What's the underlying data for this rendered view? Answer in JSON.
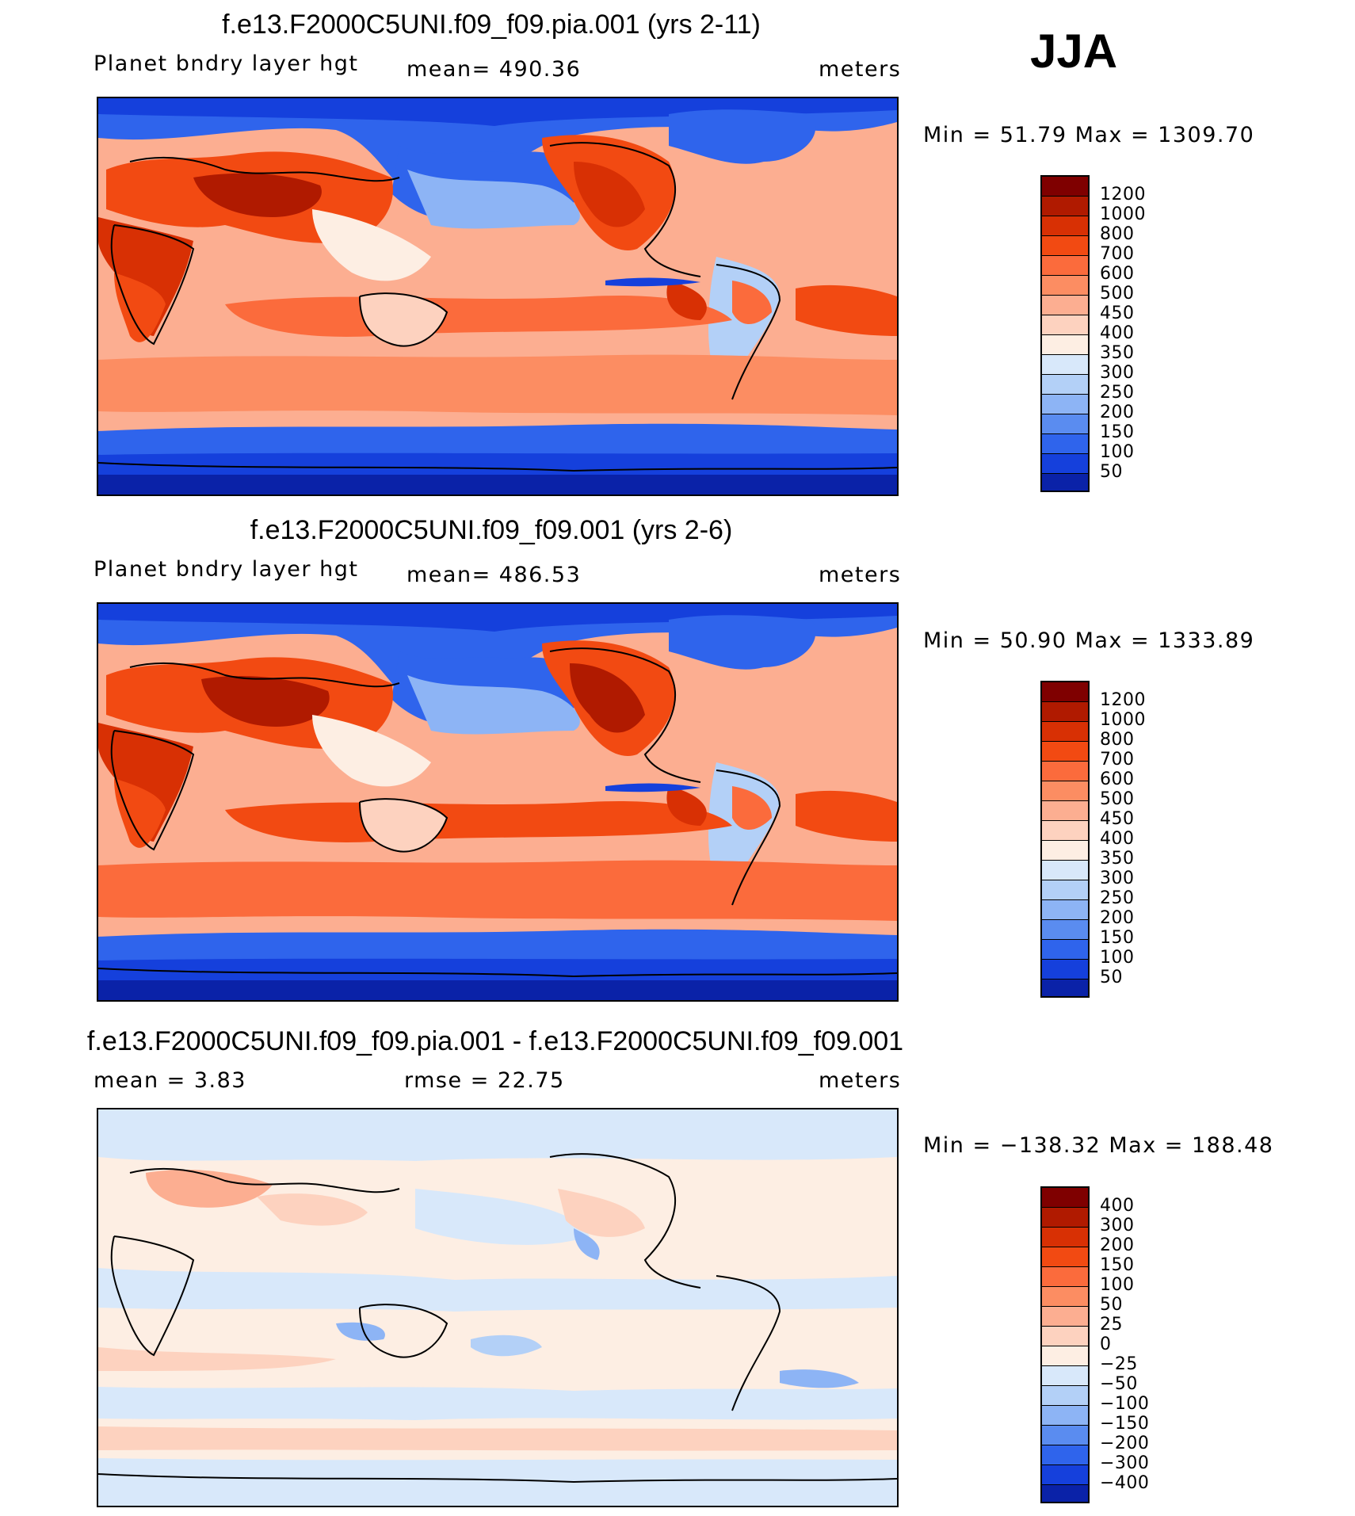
{
  "season": "JJA",
  "units_label": "meters",
  "panels": [
    {
      "title": "f.e13.F2000C5UNI.f09_f09.pia.001 (yrs 2-11)",
      "variable": "Planet bndry layer hgt",
      "stat": "mean= 490.36",
      "units": "meters",
      "minmax": "Min =   51.79 Max = 1309.70",
      "levels": [
        "1200",
        "1000",
        "800",
        "700",
        "600",
        "500",
        "450",
        "400",
        "350",
        "300",
        "250",
        "200",
        "150",
        "100",
        "50"
      ],
      "colors": [
        "#7f0000",
        "#b01a00",
        "#d83004",
        "#f24a12",
        "#fb6b3c",
        "#fc8d62",
        "#fcae91",
        "#fdd2bf",
        "#fdeee3",
        "#d8e8fa",
        "#b3d0f7",
        "#8db4f5",
        "#5a8cf0",
        "#2f64ec",
        "#1540dc",
        "#0a22a8"
      ]
    },
    {
      "title": "f.e13.F2000C5UNI.f09_f09.001 (yrs 2-6)",
      "variable": "Planet bndry layer hgt",
      "stat": "mean= 486.53",
      "units": "meters",
      "minmax": "Min =   50.90 Max = 1333.89",
      "levels": [
        "1200",
        "1000",
        "800",
        "700",
        "600",
        "500",
        "450",
        "400",
        "350",
        "300",
        "250",
        "200",
        "150",
        "100",
        "50"
      ],
      "colors": [
        "#7f0000",
        "#b01a00",
        "#d83004",
        "#f24a12",
        "#fb6b3c",
        "#fc8d62",
        "#fcae91",
        "#fdd2bf",
        "#fdeee3",
        "#d8e8fa",
        "#b3d0f7",
        "#8db4f5",
        "#5a8cf0",
        "#2f64ec",
        "#1540dc",
        "#0a22a8"
      ]
    },
    {
      "title": "f.e13.F2000C5UNI.f09_f09.pia.001 - f.e13.F2000C5UNI.f09_f09.001",
      "stat_left": "mean =    3.83",
      "stat": "rmse =   22.75",
      "units": "meters",
      "minmax": "Min = −138.32 Max = 188.48",
      "levels": [
        "400",
        "300",
        "200",
        "150",
        "100",
        "50",
        "25",
        "0",
        "−25",
        "−50",
        "−100",
        "−150",
        "−200",
        "−300",
        "−400"
      ],
      "colors": [
        "#7f0000",
        "#b01a00",
        "#d83004",
        "#f24a12",
        "#fb6b3c",
        "#fc8d62",
        "#fcae91",
        "#fdd2bf",
        "#fdeee3",
        "#d8e8fa",
        "#b3d0f7",
        "#8db4f5",
        "#5a8cf0",
        "#2f64ec",
        "#1540dc",
        "#0a22a8"
      ]
    }
  ]
}
